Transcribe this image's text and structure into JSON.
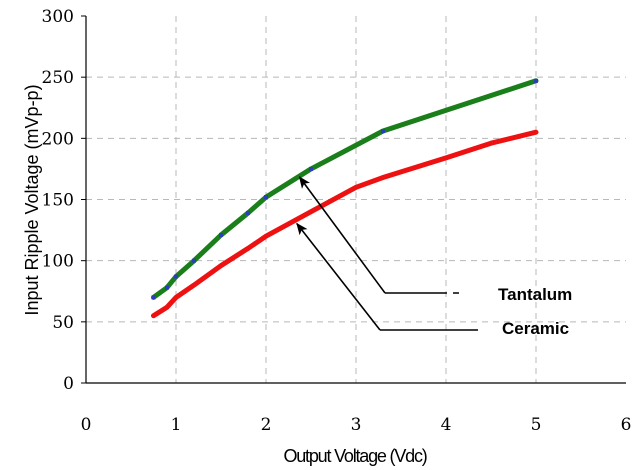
{
  "chart_data": {
    "type": "line",
    "xlabel": "Output Voltage (Vdc)",
    "ylabel": "Input Ripple Voltage (mVp-p)",
    "xlim": [
      0,
      6
    ],
    "ylim": [
      0,
      300
    ],
    "x_ticks": [
      "0",
      "1",
      "2",
      "3",
      "4",
      "5",
      "6"
    ],
    "y_ticks": [
      "0",
      "50",
      "100",
      "150",
      "200",
      "250",
      "300"
    ],
    "grid": true,
    "series": [
      {
        "name": "Tantalum",
        "color": "#1a7f1a",
        "marker_color": "#2b3fb8",
        "x": [
          0.75,
          0.9,
          1.0,
          1.2,
          1.5,
          1.8,
          2.0,
          2.5,
          3.3,
          5.0
        ],
        "y": [
          70,
          78,
          87,
          100,
          121,
          139,
          152,
          175,
          206,
          247
        ]
      },
      {
        "name": "Ceramic",
        "color": "#ee1111",
        "x": [
          0.75,
          0.9,
          1.0,
          1.2,
          1.5,
          1.8,
          2.0,
          2.5,
          3.0,
          3.3,
          4.0,
          4.5,
          5.0
        ],
        "y": [
          55,
          62,
          70,
          80,
          96,
          110,
          120,
          140,
          160,
          168,
          184,
          196,
          205
        ]
      }
    ],
    "annotations": [
      {
        "text": "Tantalum",
        "target_series": "Tantalum",
        "target_x": 2.35,
        "target_y": 170
      },
      {
        "text": "Ceramic",
        "target_series": "Ceramic",
        "target_x": 2.32,
        "target_y": 132
      }
    ]
  }
}
